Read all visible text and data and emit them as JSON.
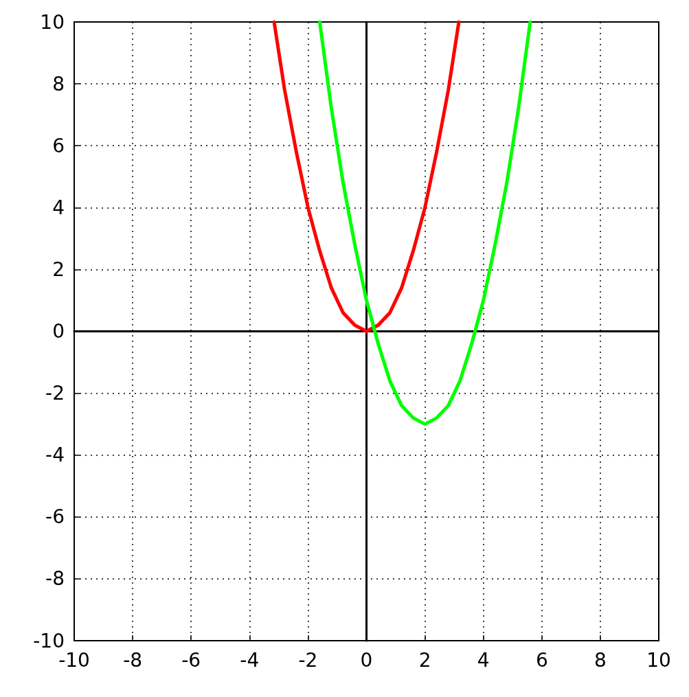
{
  "chart_data": {
    "type": "line",
    "xlim": [
      -10,
      10
    ],
    "ylim": [
      -10,
      10
    ],
    "xticks": [
      -10,
      -8,
      -6,
      -4,
      -2,
      0,
      2,
      4,
      6,
      8,
      10
    ],
    "yticks": [
      -10,
      -8,
      -6,
      -4,
      -2,
      0,
      2,
      4,
      6,
      8,
      10
    ],
    "grid": true,
    "marker": "none",
    "line_style": "solid",
    "series": [
      {
        "color": "#ff0000",
        "x": [
          -3.16,
          -2.8,
          -2.4,
          -2,
          -1.6,
          -1.2,
          -0.8,
          -0.4,
          0,
          0.4,
          0.8,
          1.2,
          1.6,
          2,
          2.4,
          2.8,
          3.16
        ],
        "values": [
          10,
          7.8,
          5.8,
          4,
          2.6,
          1.4,
          0.6,
          0.2,
          0,
          0.2,
          0.6,
          1.4,
          2.6,
          4,
          5.8,
          7.8,
          10
        ]
      },
      {
        "color": "#00ff00",
        "x": [
          -1.6,
          -1.2,
          -0.8,
          -0.4,
          0,
          0.4,
          0.8,
          1.2,
          1.6,
          2,
          2.4,
          2.8,
          3.2,
          3.6,
          4,
          4.4,
          4.8,
          5.2,
          5.6
        ],
        "values": [
          10,
          7.2,
          4.8,
          2.8,
          1,
          -0.4,
          -1.6,
          -2.4,
          -2.8,
          -3,
          -2.8,
          -2.4,
          -1.6,
          -0.4,
          1,
          2.8,
          4.8,
          7.2,
          10
        ]
      }
    ]
  }
}
